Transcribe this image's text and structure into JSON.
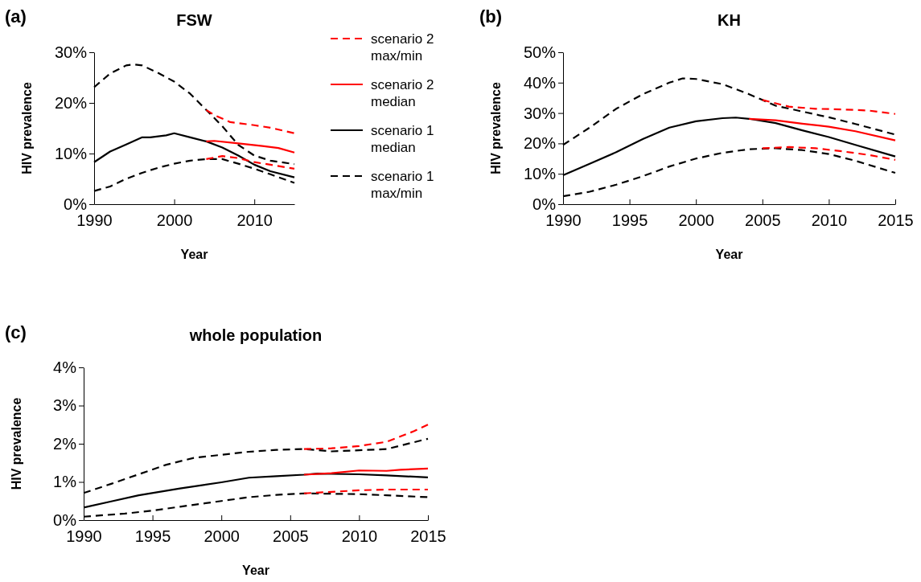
{
  "chart_data": [
    {
      "type": "line",
      "title": "FSW",
      "xlabel": "Year",
      "ylabel": "HIV prevalence",
      "annotations": [
        "(a)"
      ],
      "xlim": [
        1990,
        2015
      ],
      "xticks": [
        1990,
        2000,
        2010
      ],
      "ylim": [
        0,
        30
      ],
      "yticks": [
        {
          "value": 0,
          "label": "0%"
        },
        {
          "value": 10,
          "label": "10%"
        },
        {
          "value": 20,
          "label": "20%"
        },
        {
          "value": 30,
          "label": "30%"
        }
      ],
      "legend": "right",
      "grid": false,
      "marker": "none",
      "series": [
        {
          "name": "scenario 2 max/min",
          "color": "#ff0000",
          "line_style": "dashed",
          "x": [
            2004,
            2005,
            2007,
            2010,
            2012,
            2015
          ],
          "values": [
            18.6,
            17.6,
            16.2,
            15.6,
            15.1,
            14.0
          ]
        },
        {
          "color": "#ff0000",
          "line_style": "dashed",
          "x": [
            2004,
            2006,
            2008,
            2010,
            2012,
            2015
          ],
          "values": [
            8.9,
            9.5,
            9.1,
            8.3,
            7.8,
            7.0
          ]
        },
        {
          "name": "scenario 2 median",
          "color": "#ff0000",
          "line_style": "solid",
          "x": [
            2004,
            2005,
            2008,
            2011,
            2013,
            2015
          ],
          "values": [
            12.4,
            12.5,
            12.0,
            11.5,
            11.1,
            10.2
          ]
        },
        {
          "name": "scenario 1 median",
          "color": "#000000",
          "line_style": "solid",
          "x": [
            1990,
            1992,
            1994,
            1996,
            1997,
            1999,
            2000,
            2002,
            2004,
            2006,
            2008,
            2010,
            2012,
            2015
          ],
          "values": [
            8.3,
            10.4,
            11.8,
            13.2,
            13.2,
            13.6,
            14.0,
            13.2,
            12.4,
            11.2,
            9.6,
            7.8,
            6.5,
            5.3
          ]
        },
        {
          "name": "scenario 1 max/min",
          "color": "#000000",
          "line_style": "dashed",
          "x": [
            1990,
            1992,
            1994,
            1995,
            1996,
            1998,
            2000,
            2002,
            2004,
            2006,
            2008,
            2010,
            2012,
            2015
          ],
          "values": [
            23.1,
            25.8,
            27.4,
            27.6,
            27.4,
            25.9,
            24.2,
            21.8,
            18.6,
            15.4,
            11.7,
            9.6,
            8.6,
            7.9
          ]
        },
        {
          "color": "#000000",
          "line_style": "dashed",
          "x": [
            1990,
            1992,
            1994,
            1996,
            1998,
            2000,
            2002,
            2004,
            2006,
            2008,
            2010,
            2012,
            2015
          ],
          "values": [
            2.6,
            3.5,
            5.0,
            6.2,
            7.2,
            8.0,
            8.6,
            8.9,
            8.9,
            8.0,
            7.0,
            5.9,
            4.2
          ]
        }
      ]
    },
    {
      "type": "line",
      "title": "KH",
      "xlabel": "Year",
      "ylabel": "HIV prevalence",
      "annotations": [
        "(b)"
      ],
      "xlim": [
        1990,
        2015
      ],
      "xticks": [
        1990,
        1995,
        2000,
        2005,
        2010,
        2015
      ],
      "ylim": [
        0,
        50
      ],
      "yticks": [
        {
          "value": 0,
          "label": "0%"
        },
        {
          "value": 10,
          "label": "10%"
        },
        {
          "value": 20,
          "label": "20%"
        },
        {
          "value": 30,
          "label": "30%"
        },
        {
          "value": 40,
          "label": "40%"
        },
        {
          "value": 50,
          "label": "50%"
        }
      ],
      "grid": false,
      "marker": "none",
      "series": [
        {
          "color": "#ff0000",
          "line_style": "dashed",
          "x": [
            2005,
            2007,
            2009,
            2011,
            2013,
            2015
          ],
          "values": [
            34.3,
            32.1,
            31.4,
            31.2,
            30.8,
            29.7
          ]
        },
        {
          "color": "#ff0000",
          "line_style": "dashed",
          "x": [
            2005,
            2007,
            2009,
            2011,
            2013,
            2015
          ],
          "values": [
            18.4,
            18.8,
            18.4,
            17.4,
            16.2,
            14.6
          ]
        },
        {
          "color": "#ff0000",
          "line_style": "solid",
          "x": [
            2004,
            2006,
            2008,
            2010,
            2012,
            2015
          ],
          "values": [
            28.1,
            27.6,
            26.5,
            25.5,
            24.0,
            21.0
          ]
        },
        {
          "color": "#000000",
          "line_style": "solid",
          "x": [
            1990,
            1992,
            1994,
            1996,
            1998,
            2000,
            2002,
            2003,
            2004,
            2006,
            2008,
            2010,
            2012,
            2015
          ],
          "values": [
            9.5,
            13.3,
            17.1,
            21.4,
            25.2,
            27.3,
            28.3,
            28.5,
            28.1,
            26.7,
            24.3,
            22.1,
            19.5,
            15.7
          ]
        },
        {
          "color": "#000000",
          "line_style": "dashed",
          "x": [
            1990,
            1992,
            1994,
            1996,
            1998,
            1999,
            2000,
            2002,
            2004,
            2005,
            2006,
            2008,
            2010,
            2012,
            2015
          ],
          "values": [
            19.5,
            25.2,
            31.4,
            36.2,
            40.0,
            41.4,
            41.2,
            39.5,
            36.2,
            34.3,
            32.4,
            30.5,
            28.6,
            26.4,
            22.9
          ]
        },
        {
          "color": "#000000",
          "line_style": "dashed",
          "x": [
            1990,
            1992,
            1994,
            1996,
            1998,
            2000,
            2002,
            2004,
            2006,
            2008,
            2010,
            2012,
            2015
          ],
          "values": [
            2.6,
            4.1,
            6.4,
            9.2,
            12.4,
            15.0,
            16.9,
            18.1,
            18.4,
            17.8,
            16.5,
            14.3,
            10.3
          ]
        }
      ]
    },
    {
      "type": "line",
      "title": "whole population",
      "xlabel": "Year",
      "ylabel": "HIV prevalence",
      "annotations": [
        "(c)"
      ],
      "xlim": [
        1990,
        2015
      ],
      "xticks": [
        1990,
        1995,
        2000,
        2005,
        2010,
        2015
      ],
      "ylim": [
        0,
        4
      ],
      "yticks": [
        {
          "value": 0,
          "label": "0%"
        },
        {
          "value": 1,
          "label": "1%"
        },
        {
          "value": 2,
          "label": "2%"
        },
        {
          "value": 3,
          "label": "3%"
        },
        {
          "value": 4,
          "label": "4%"
        }
      ],
      "grid": false,
      "marker": "none",
      "series": [
        {
          "color": "#ff0000",
          "line_style": "dashed",
          "x": [
            2006,
            2008,
            2010,
            2012,
            2014,
            2015
          ],
          "values": [
            1.86,
            1.88,
            1.94,
            2.05,
            2.33,
            2.5
          ]
        },
        {
          "color": "#ff0000",
          "line_style": "dashed",
          "x": [
            2006,
            2008,
            2010,
            2012,
            2015
          ],
          "values": [
            0.7,
            0.74,
            0.78,
            0.8,
            0.8
          ]
        },
        {
          "color": "#ff0000",
          "line_style": "solid",
          "x": [
            2006,
            2008,
            2010,
            2012,
            2013,
            2015
          ],
          "values": [
            1.19,
            1.23,
            1.3,
            1.29,
            1.32,
            1.35
          ]
        },
        {
          "color": "#000000",
          "line_style": "solid",
          "x": [
            1990,
            1992,
            1994,
            1997,
            2000,
            2002,
            2004,
            2006,
            2007,
            2010,
            2012,
            2015
          ],
          "values": [
            0.33,
            0.49,
            0.65,
            0.83,
            0.99,
            1.11,
            1.15,
            1.19,
            1.22,
            1.2,
            1.17,
            1.12
          ]
        },
        {
          "color": "#000000",
          "line_style": "dashed",
          "x": [
            1990,
            1992,
            1994,
            1996,
            1998,
            2000,
            2002,
            2004,
            2006,
            2008,
            2010,
            2012,
            2015
          ],
          "values": [
            0.71,
            0.95,
            1.2,
            1.45,
            1.63,
            1.71,
            1.79,
            1.84,
            1.86,
            1.8,
            1.83,
            1.86,
            2.13
          ]
        },
        {
          "color": "#000000",
          "line_style": "dashed",
          "x": [
            1990,
            1993,
            1995,
            1997,
            2000,
            2002,
            2004,
            2006,
            2008,
            2010,
            2012,
            2015
          ],
          "values": [
            0.09,
            0.17,
            0.25,
            0.35,
            0.5,
            0.6,
            0.66,
            0.7,
            0.69,
            0.68,
            0.65,
            0.6
          ]
        }
      ]
    }
  ]
}
